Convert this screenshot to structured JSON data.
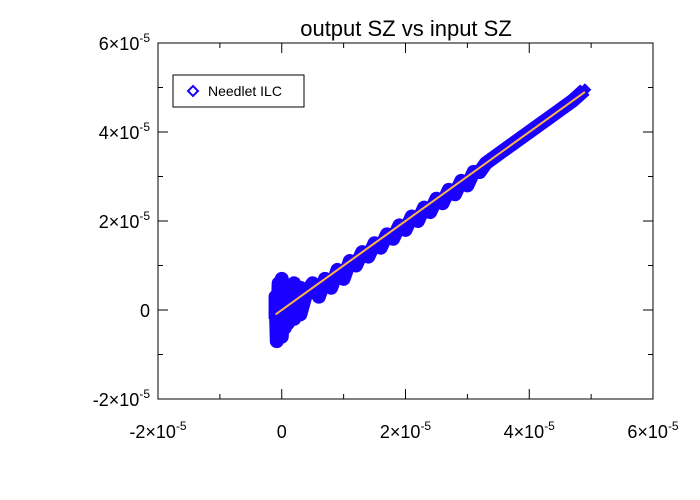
{
  "chart_data": {
    "type": "scatter",
    "title": "output SZ vs input SZ",
    "xlabel": "",
    "ylabel": "",
    "xlim": [
      -2e-05,
      6e-05
    ],
    "ylim": [
      -2e-05,
      6e-05
    ],
    "grid": false,
    "legend_position": "top-left",
    "x_ticks": [
      {
        "value": -2e-05,
        "base": "-2×10",
        "exp": "-5"
      },
      {
        "value": 0,
        "base": "0",
        "exp": ""
      },
      {
        "value": 2e-05,
        "base": "2×10",
        "exp": "-5"
      },
      {
        "value": 4e-05,
        "base": "4×10",
        "exp": "-5"
      },
      {
        "value": 6e-05,
        "base": "6×10",
        "exp": "-5"
      }
    ],
    "y_ticks": [
      {
        "value": -2e-05,
        "base": "-2×10",
        "exp": "-5"
      },
      {
        "value": 0,
        "base": "0",
        "exp": ""
      },
      {
        "value": 2e-05,
        "base": "2×10",
        "exp": "-5"
      },
      {
        "value": 4e-05,
        "base": "4×10",
        "exp": "-5"
      },
      {
        "value": 6e-05,
        "base": "6×10",
        "exp": "-5"
      }
    ],
    "series": [
      {
        "name": "Needlet ILC",
        "marker": "diamond",
        "color": "#1a00ff",
        "points": [
          [
            -1e-06,
            -2e-06
          ],
          [
            -1e-06,
            3e-06
          ],
          [
            -8e-07,
            -7e-06
          ],
          [
            -5e-07,
            6e-06
          ],
          [
            -5e-07,
            -5e-06
          ],
          [
            0.0,
            7e-06
          ],
          [
            0.0,
            -6e-06
          ],
          [
            2e-07,
            1e-06
          ],
          [
            5e-07,
            5e-06
          ],
          [
            5e-07,
            -4e-06
          ],
          [
            1e-06,
            3e-06
          ],
          [
            1e-06,
            -3e-06
          ],
          [
            1.5e-06,
            4e-06
          ],
          [
            2e-06,
            6e-06
          ],
          [
            2e-06,
            -2e-06
          ],
          [
            3e-06,
            5e-06
          ],
          [
            3e-06,
            -1e-06
          ],
          [
            4e-06,
            4e-06
          ],
          [
            5e-06,
            6e-06
          ],
          [
            6e-06,
            3e-06
          ],
          [
            7e-06,
            7e-06
          ],
          [
            8e-06,
            5e-06
          ],
          [
            9e-06,
            9e-06
          ],
          [
            1e-05,
            7e-06
          ],
          [
            1.1e-05,
            1.1e-05
          ],
          [
            1.2e-05,
            1e-05
          ],
          [
            1.3e-05,
            1.3e-05
          ],
          [
            1.4e-05,
            1.2e-05
          ],
          [
            1.5e-05,
            1.5e-05
          ],
          [
            1.6e-05,
            1.4e-05
          ],
          [
            1.7e-05,
            1.7e-05
          ],
          [
            1.8e-05,
            1.6e-05
          ],
          [
            1.9e-05,
            1.9e-05
          ],
          [
            2e-05,
            1.8e-05
          ],
          [
            2.1e-05,
            2.1e-05
          ],
          [
            2.2e-05,
            2e-05
          ],
          [
            2.3e-05,
            2.3e-05
          ],
          [
            2.4e-05,
            2.2e-05
          ],
          [
            2.5e-05,
            2.5e-05
          ],
          [
            2.6e-05,
            2.4e-05
          ],
          [
            2.7e-05,
            2.7e-05
          ],
          [
            2.8e-05,
            2.6e-05
          ],
          [
            2.9e-05,
            2.9e-05
          ],
          [
            3e-05,
            2.8e-05
          ],
          [
            3.1e-05,
            3.1e-05
          ],
          [
            3.2e-05,
            3.1e-05
          ],
          [
            3.3e-05,
            3.3e-05
          ],
          [
            3.5e-05,
            3.5e-05
          ],
          [
            3.7e-05,
            3.7e-05
          ],
          [
            3.9e-05,
            3.9e-05
          ],
          [
            4.1e-05,
            4.1e-05
          ],
          [
            4.3e-05,
            4.3e-05
          ],
          [
            4.5e-05,
            4.5e-05
          ],
          [
            4.7e-05,
            4.7e-05
          ],
          [
            4.9e-05,
            4.95e-05
          ]
        ]
      }
    ],
    "fit_line": {
      "color": "#ffb347",
      "points": [
        [
          -1e-06,
          -1e-06
        ],
        [
          4.9e-05,
          4.9e-05
        ]
      ]
    }
  }
}
